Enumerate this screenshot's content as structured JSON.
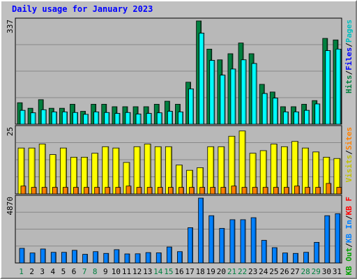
{
  "title": "Daily usage for January 2023",
  "chart_data": [
    {
      "type": "bar",
      "categories": [
        "1",
        "2",
        "3",
        "4",
        "5",
        "6",
        "7",
        "8",
        "9",
        "10",
        "11",
        "12",
        "13",
        "14",
        "15",
        "16",
        "17",
        "18",
        "19",
        "20",
        "21",
        "22",
        "23",
        "24",
        "25",
        "26",
        "27",
        "28",
        "29",
        "30",
        "31"
      ],
      "weekend_days": [
        "1",
        "7",
        "8",
        "14",
        "15",
        "21",
        "22",
        "28",
        "29"
      ],
      "ylabel_max": "337",
      "ymax": 337,
      "series": [
        {
          "name": "Hits",
          "color": "#008040",
          "values": [
            70,
            52,
            80,
            52,
            52,
            65,
            42,
            65,
            65,
            57,
            57,
            57,
            57,
            65,
            75,
            65,
            137,
            337,
            245,
            210,
            230,
            265,
            230,
            130,
            105,
            57,
            57,
            65,
            77,
            280,
            275
          ]
        },
        {
          "name": "Files",
          "color": "#0000ff",
          "values": [
            45,
            37,
            47,
            40,
            40,
            38,
            32,
            40,
            38,
            35,
            38,
            33,
            35,
            37,
            42,
            40,
            115,
            297,
            208,
            160,
            180,
            210,
            198,
            100,
            85,
            40,
            40,
            45,
            66,
            240,
            245
          ]
        },
        {
          "name": "Pages",
          "color": "#00ffff",
          "values": [
            45,
            37,
            47,
            40,
            40,
            38,
            32,
            40,
            38,
            35,
            38,
            33,
            35,
            37,
            42,
            40,
            115,
            297,
            208,
            160,
            180,
            210,
            198,
            100,
            85,
            40,
            40,
            45,
            66,
            240,
            245
          ]
        }
      ]
    },
    {
      "type": "bar",
      "categories": [
        "1",
        "2",
        "3",
        "4",
        "5",
        "6",
        "7",
        "8",
        "9",
        "10",
        "11",
        "12",
        "13",
        "14",
        "15",
        "16",
        "17",
        "18",
        "19",
        "20",
        "21",
        "22",
        "23",
        "24",
        "25",
        "26",
        "27",
        "28",
        "29",
        "30",
        "31"
      ],
      "ylabel_max": "25",
      "ymax": 25,
      "series": [
        {
          "name": "Visits",
          "color": "#ffff00",
          "values": [
            17.5,
            17.5,
            19,
            15,
            17.5,
            14,
            14,
            15.5,
            18,
            17.5,
            12,
            18,
            19,
            18,
            18,
            11,
            9,
            10,
            18,
            18,
            22,
            24,
            15.5,
            16.5,
            19,
            18,
            20,
            17.5,
            16,
            14,
            13.5
          ]
        },
        {
          "name": "Sites",
          "color": "#ff8000",
          "values": [
            3,
            2.5,
            2.5,
            2.5,
            2.5,
            2.5,
            2.5,
            2.5,
            2.5,
            2.5,
            3,
            2.5,
            2.5,
            2.5,
            2.5,
            2.5,
            2.5,
            2.5,
            2.5,
            2.5,
            3,
            2.5,
            2.5,
            2.5,
            2.5,
            2.5,
            3,
            2.5,
            2.5,
            4,
            2.5
          ]
        }
      ]
    },
    {
      "type": "bar",
      "categories": [
        "1",
        "2",
        "3",
        "4",
        "5",
        "6",
        "7",
        "8",
        "9",
        "10",
        "11",
        "12",
        "13",
        "14",
        "15",
        "16",
        "17",
        "18",
        "19",
        "20",
        "21",
        "22",
        "23",
        "24",
        "25",
        "26",
        "27",
        "28",
        "29",
        "30",
        "31"
      ],
      "ylabel_max": "4870",
      "ymax": 4870,
      "series": [
        {
          "name": "KB Out",
          "color": "#00c000",
          "values": [
            0,
            0,
            0,
            0,
            0,
            0,
            0,
            0,
            0,
            0,
            0,
            0,
            0,
            0,
            0,
            0,
            0,
            0,
            0,
            0,
            0,
            0,
            0,
            0,
            0,
            0,
            0,
            0,
            0,
            0,
            0
          ]
        },
        {
          "name": "KB In",
          "color": "#0080ff",
          "values": [
            1100,
            750,
            1050,
            800,
            800,
            950,
            650,
            850,
            720,
            1000,
            680,
            690,
            780,
            760,
            1200,
            850,
            2650,
            4870,
            3550,
            2600,
            3250,
            3250,
            3400,
            1700,
            1150,
            750,
            720,
            800,
            1550,
            3550,
            3700
          ]
        },
        {
          "name": "KB F",
          "color": "#ff0000",
          "values": [
            0,
            0,
            0,
            0,
            0,
            0,
            0,
            0,
            0,
            0,
            0,
            0,
            0,
            0,
            0,
            0,
            0,
            0,
            0,
            0,
            0,
            0,
            0,
            0,
            0,
            0,
            0,
            0,
            0,
            0,
            0
          ]
        }
      ]
    }
  ],
  "legend_top": [
    {
      "text": "Hits",
      "color": "#008040"
    },
    {
      "text": "/",
      "color": "#000000"
    },
    {
      "text": "Files",
      "color": "#0000ff"
    },
    {
      "text": "/",
      "color": "#000000"
    },
    {
      "text": "Pages",
      "color": "#00c0c0"
    }
  ],
  "legend_mid": [
    {
      "text": "Visits",
      "color": "#c0c000"
    },
    {
      "text": "/",
      "color": "#000000"
    },
    {
      "text": "Sites",
      "color": "#ff8000"
    }
  ],
  "legend_bot": [
    {
      "text": "KB Out",
      "color": "#00a000"
    },
    {
      "text": "/",
      "color": "#000000"
    },
    {
      "text": "KB In",
      "color": "#0080ff"
    },
    {
      "text": "/",
      "color": "#000000"
    },
    {
      "text": "KB F",
      "color": "#ff0000"
    }
  ]
}
